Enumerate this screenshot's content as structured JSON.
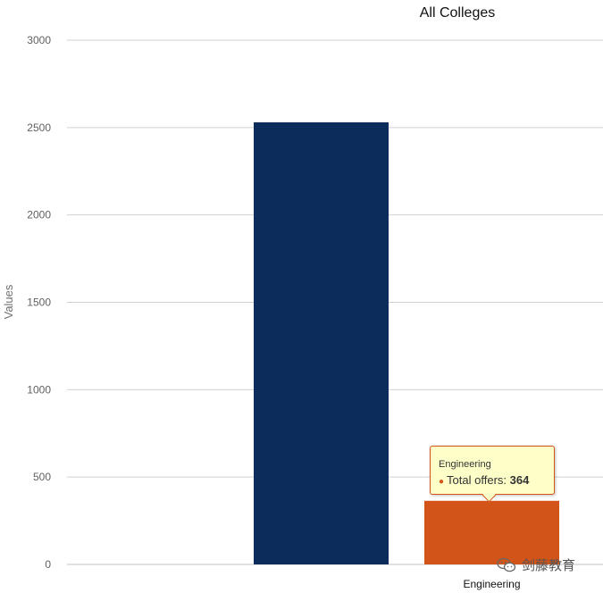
{
  "chart_data": {
    "type": "bar",
    "title": "All Colleges",
    "ylabel": "Values",
    "xlabel": "",
    "ylim": [
      0,
      3000
    ],
    "yticks": [
      0,
      500,
      1000,
      1500,
      2000,
      2500,
      3000
    ],
    "grid": true,
    "bars": [
      {
        "category": "",
        "value": 2530,
        "color": "#0c2d5c"
      },
      {
        "category": "Engineering",
        "value": 364,
        "color": "#d35418"
      }
    ]
  },
  "tooltip": {
    "category": "Engineering",
    "series_label": "Total offers",
    "value": "364"
  },
  "watermark": {
    "text": "剑藤教育",
    "icon": "wechat-icon"
  }
}
